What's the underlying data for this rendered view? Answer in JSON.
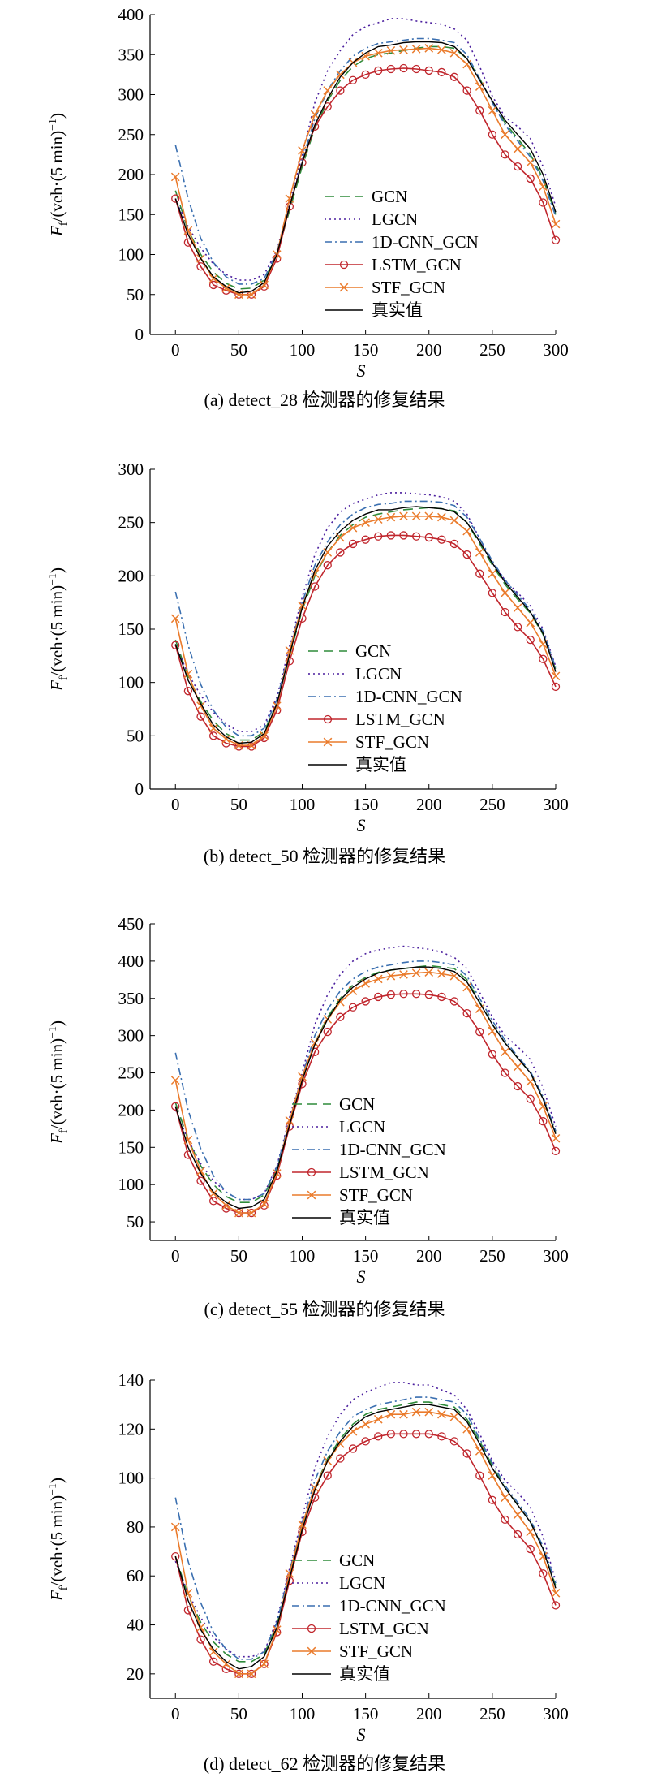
{
  "figure": {
    "legend_labels": [
      "GCN",
      "LGCN",
      "1D-CNN_GCN",
      "LSTM_GCN",
      "STF_GCN",
      "真实值"
    ],
    "series_colors": {
      "GCN": "#2e8b3a",
      "LGCN": "#4b1f9e",
      "1D-CNN_GCN": "#3a6fb0",
      "LSTM_GCN": "#c0262d",
      "STF_GCN": "#ea7b2c",
      "真实值": "#000000"
    },
    "line_styles": {
      "GCN": "dashed",
      "LGCN": "dotted",
      "1D-CNN_GCN": "dash-dot",
      "LSTM_GCN": "solid-circle-markers",
      "STF_GCN": "solid-x-markers",
      "真实值": "solid"
    }
  },
  "chart_data": [
    {
      "type": "line",
      "caption": "(a) detect_28 检测器的修复结果",
      "xlabel": "S",
      "ylabel_main": "F",
      "ylabel_sub": "f",
      "ylabel_rest": "/(veh·(5 min)",
      "ylabel_sup": "−1",
      "ylabel_close": ")",
      "xlim": [
        -20,
        300
      ],
      "ylim": [
        0,
        400
      ],
      "xticks": [
        0,
        50,
        100,
        150,
        200,
        250,
        300
      ],
      "yticks": [
        0,
        50,
        100,
        150,
        200,
        250,
        300,
        350,
        400
      ],
      "legend_position": "center-right",
      "x": [
        0,
        10,
        20,
        30,
        40,
        50,
        60,
        70,
        80,
        90,
        100,
        110,
        120,
        130,
        140,
        150,
        160,
        170,
        180,
        190,
        200,
        210,
        220,
        230,
        240,
        250,
        260,
        270,
        280,
        290,
        300
      ],
      "series": [
        {
          "name": "GCN",
          "values": [
            180,
            130,
            100,
            78,
            64,
            57,
            58,
            68,
            100,
            155,
            210,
            258,
            292,
            318,
            335,
            345,
            350,
            352,
            355,
            358,
            360,
            360,
            358,
            345,
            320,
            290,
            265,
            245,
            225,
            195,
            150
          ]
        },
        {
          "name": "LGCN",
          "values": [
            170,
            135,
            108,
            88,
            75,
            68,
            68,
            75,
            105,
            165,
            225,
            290,
            330,
            355,
            375,
            385,
            390,
            395,
            395,
            392,
            390,
            388,
            382,
            368,
            335,
            298,
            272,
            260,
            245,
            210,
            160
          ]
        },
        {
          "name": "1D-CNN_GCN",
          "values": [
            237,
            170,
            120,
            90,
            72,
            63,
            63,
            70,
            103,
            160,
            218,
            270,
            305,
            330,
            348,
            358,
            364,
            366,
            368,
            370,
            370,
            368,
            365,
            350,
            320,
            290,
            262,
            242,
            222,
            192,
            148
          ]
        },
        {
          "name": "LSTM_GCN",
          "values": [
            170,
            115,
            85,
            62,
            55,
            50,
            50,
            60,
            95,
            160,
            215,
            260,
            285,
            305,
            318,
            325,
            330,
            332,
            333,
            332,
            330,
            328,
            322,
            305,
            280,
            250,
            225,
            210,
            195,
            165,
            118
          ]
        },
        {
          "name": "STF_GCN",
          "values": [
            197,
            130,
            95,
            70,
            58,
            50,
            50,
            62,
            100,
            170,
            230,
            275,
            305,
            325,
            340,
            348,
            352,
            355,
            356,
            357,
            358,
            356,
            352,
            338,
            310,
            280,
            250,
            232,
            215,
            185,
            138
          ]
        },
        {
          "name": "真实值",
          "values": [
            170,
            125,
            95,
            72,
            60,
            52,
            54,
            65,
            100,
            160,
            215,
            262,
            295,
            322,
            340,
            352,
            360,
            362,
            365,
            366,
            366,
            365,
            360,
            345,
            318,
            292,
            268,
            250,
            232,
            200,
            153
          ]
        }
      ]
    },
    {
      "type": "line",
      "caption": "(b) detect_50 检测器的修复结果",
      "xlabel": "S",
      "ylabel_main": "F",
      "ylabel_sub": "f",
      "ylabel_rest": "/(veh·(5 min)",
      "ylabel_sup": "−1",
      "ylabel_close": ")",
      "xlim": [
        -20,
        300
      ],
      "ylim": [
        0,
        300
      ],
      "xticks": [
        0,
        50,
        100,
        150,
        200,
        250,
        300
      ],
      "yticks": [
        0,
        50,
        100,
        150,
        200,
        250,
        300
      ],
      "legend_position": "center-right",
      "x": [
        0,
        10,
        20,
        30,
        40,
        50,
        60,
        70,
        80,
        90,
        100,
        110,
        120,
        130,
        140,
        150,
        160,
        170,
        180,
        190,
        200,
        210,
        220,
        230,
        240,
        250,
        260,
        270,
        280,
        290,
        300
      ],
      "series": [
        {
          "name": "GCN",
          "values": [
            140,
            105,
            82,
            64,
            52,
            46,
            46,
            54,
            80,
            125,
            168,
            200,
            222,
            238,
            248,
            255,
            258,
            260,
            262,
            263,
            264,
            263,
            261,
            250,
            230,
            210,
            192,
            178,
            165,
            145,
            112
          ]
        },
        {
          "name": "LGCN",
          "values": [
            135,
            108,
            88,
            72,
            61,
            54,
            54,
            60,
            86,
            134,
            180,
            220,
            245,
            260,
            268,
            272,
            276,
            278,
            278,
            277,
            276,
            274,
            270,
            258,
            235,
            212,
            196,
            184,
            172,
            150,
            115
          ]
        },
        {
          "name": "1D-CNN_GCN",
          "values": [
            185,
            135,
            98,
            74,
            58,
            50,
            50,
            57,
            84,
            130,
            175,
            210,
            232,
            248,
            258,
            264,
            267,
            268,
            270,
            270,
            270,
            269,
            266,
            255,
            235,
            214,
            196,
            182,
            168,
            148,
            114
          ]
        },
        {
          "name": "LSTM_GCN",
          "values": [
            135,
            92,
            68,
            50,
            43,
            40,
            40,
            48,
            74,
            120,
            160,
            190,
            210,
            222,
            230,
            234,
            237,
            238,
            238,
            237,
            236,
            234,
            230,
            220,
            202,
            184,
            166,
            152,
            140,
            122,
            96
          ]
        },
        {
          "name": "STF_GCN",
          "values": [
            160,
            108,
            78,
            57,
            47,
            41,
            41,
            50,
            78,
            130,
            172,
            202,
            222,
            236,
            245,
            250,
            253,
            255,
            256,
            256,
            256,
            255,
            252,
            242,
            222,
            202,
            184,
            170,
            156,
            136,
            106
          ]
        },
        {
          "name": "真实值",
          "values": [
            136,
            102,
            80,
            60,
            49,
            43,
            44,
            52,
            80,
            126,
            170,
            205,
            228,
            242,
            252,
            258,
            262,
            262,
            264,
            265,
            264,
            263,
            260,
            250,
            232,
            212,
            194,
            180,
            166,
            146,
            110
          ]
        }
      ]
    },
    {
      "type": "line",
      "caption": "(c) detect_55 检测器的修复结果",
      "xlabel": "S",
      "ylabel_main": "F",
      "ylabel_sub": "f",
      "ylabel_rest": "/(veh·(5 min)",
      "ylabel_sup": "−1",
      "ylabel_close": ")",
      "xlim": [
        -20,
        300
      ],
      "ylim": [
        25,
        450
      ],
      "xticks": [
        0,
        50,
        100,
        150,
        200,
        250,
        300
      ],
      "yticks": [
        50,
        100,
        150,
        200,
        250,
        300,
        350,
        400,
        450
      ],
      "legend_position": "center-left",
      "x": [
        0,
        10,
        20,
        30,
        40,
        50,
        60,
        70,
        80,
        90,
        100,
        110,
        120,
        130,
        140,
        150,
        160,
        170,
        180,
        190,
        200,
        210,
        220,
        230,
        240,
        250,
        260,
        270,
        280,
        290,
        300
      ],
      "series": [
        {
          "name": "GCN",
          "values": [
            210,
            160,
            125,
            100,
            84,
            76,
            76,
            86,
            120,
            180,
            240,
            290,
            325,
            350,
            368,
            378,
            385,
            388,
            390,
            392,
            394,
            392,
            390,
            375,
            345,
            315,
            290,
            270,
            250,
            215,
            170
          ]
        },
        {
          "name": "LGCN",
          "values": [
            200,
            160,
            128,
            105,
            90,
            80,
            80,
            88,
            125,
            190,
            250,
            315,
            355,
            382,
            400,
            410,
            415,
            418,
            420,
            418,
            416,
            412,
            405,
            390,
            358,
            325,
            300,
            285,
            268,
            230,
            178
          ]
        },
        {
          "name": "1D-CNN_GCN",
          "values": [
            277,
            200,
            148,
            112,
            90,
            80,
            80,
            88,
            124,
            186,
            246,
            300,
            335,
            360,
            376,
            386,
            392,
            395,
            398,
            400,
            400,
            398,
            395,
            380,
            350,
            320,
            294,
            272,
            252,
            218,
            172
          ]
        },
        {
          "name": "LSTM_GCN",
          "values": [
            205,
            140,
            105,
            78,
            68,
            62,
            62,
            72,
            112,
            178,
            235,
            278,
            305,
            325,
            338,
            346,
            352,
            355,
            356,
            356,
            355,
            352,
            346,
            330,
            305,
            275,
            250,
            232,
            215,
            185,
            145
          ]
        },
        {
          "name": "STF_GCN",
          "values": [
            240,
            160,
            118,
            88,
            72,
            62,
            62,
            74,
            115,
            186,
            245,
            290,
            322,
            345,
            360,
            370,
            376,
            380,
            382,
            384,
            385,
            383,
            380,
            365,
            336,
            306,
            278,
            258,
            238,
            205,
            162
          ]
        },
        {
          "name": "真实值",
          "values": [
            205,
            150,
            115,
            90,
            76,
            68,
            70,
            80,
            118,
            180,
            240,
            288,
            322,
            348,
            365,
            376,
            384,
            388,
            390,
            392,
            392,
            390,
            386,
            372,
            344,
            315,
            290,
            270,
            250,
            215,
            168
          ]
        }
      ]
    },
    {
      "type": "line",
      "caption": "(d) detect_62 检测器的修复结果",
      "xlabel": "S",
      "ylabel_main": "F",
      "ylabel_sub": "f",
      "ylabel_rest": "/(veh·(5 min)",
      "ylabel_sup": "−1",
      "ylabel_close": ")",
      "xlim": [
        -20,
        300
      ],
      "ylim": [
        10,
        140
      ],
      "xticks": [
        0,
        50,
        100,
        150,
        200,
        250,
        300
      ],
      "yticks": [
        20,
        40,
        60,
        80,
        100,
        120,
        140
      ],
      "legend_position": "center-left",
      "x": [
        0,
        10,
        20,
        30,
        40,
        50,
        60,
        70,
        80,
        90,
        100,
        110,
        120,
        130,
        140,
        150,
        160,
        170,
        180,
        190,
        200,
        210,
        220,
        230,
        240,
        250,
        260,
        270,
        280,
        290,
        300
      ],
      "series": [
        {
          "name": "GCN",
          "values": [
            68,
            52,
            41,
            33,
            28,
            25,
            25,
            28,
            40,
            60,
            80,
            96,
            108,
            116,
            122,
            126,
            128,
            129,
            130,
            131,
            131,
            130,
            129,
            124,
            115,
            105,
            96,
            89,
            82,
            71,
            56
          ]
        },
        {
          "name": "LGCN",
          "values": [
            66,
            53,
            43,
            35,
            30,
            27,
            27,
            29,
            42,
            63,
            84,
            104,
            117,
            126,
            132,
            135,
            137,
            139,
            139,
            138,
            138,
            136,
            134,
            128,
            118,
            107,
            99,
            94,
            88,
            76,
            58
          ]
        },
        {
          "name": "1D-CNN_GCN",
          "values": [
            92,
            66,
            49,
            37,
            30,
            26,
            26,
            29,
            41,
            62,
            82,
            99,
            111,
            119,
            125,
            128,
            130,
            131,
            132,
            133,
            133,
            132,
            131,
            126,
            116,
            106,
            97,
            90,
            83,
            72,
            57
          ]
        },
        {
          "name": "LSTM_GCN",
          "values": [
            68,
            46,
            34,
            25,
            22,
            20,
            20,
            24,
            37,
            58,
            78,
            92,
            101,
            108,
            112,
            115,
            117,
            118,
            118,
            118,
            118,
            117,
            115,
            110,
            101,
            91,
            83,
            77,
            71,
            61,
            48
          ]
        },
        {
          "name": "STF_GCN",
          "values": [
            80,
            53,
            39,
            29,
            24,
            20,
            20,
            24,
            38,
            61,
            81,
            96,
            107,
            114,
            119,
            122,
            124,
            126,
            126,
            127,
            127,
            126,
            125,
            120,
            111,
            101,
            92,
            85,
            78,
            68,
            53
          ]
        },
        {
          "name": "真实值",
          "values": [
            68,
            50,
            38,
            30,
            25,
            22,
            23,
            27,
            39,
            59,
            79,
            95,
            107,
            115,
            121,
            125,
            127,
            128,
            129,
            130,
            130,
            129,
            128,
            123,
            114,
            104,
            96,
            89,
            82,
            71,
            55
          ]
        }
      ]
    }
  ]
}
